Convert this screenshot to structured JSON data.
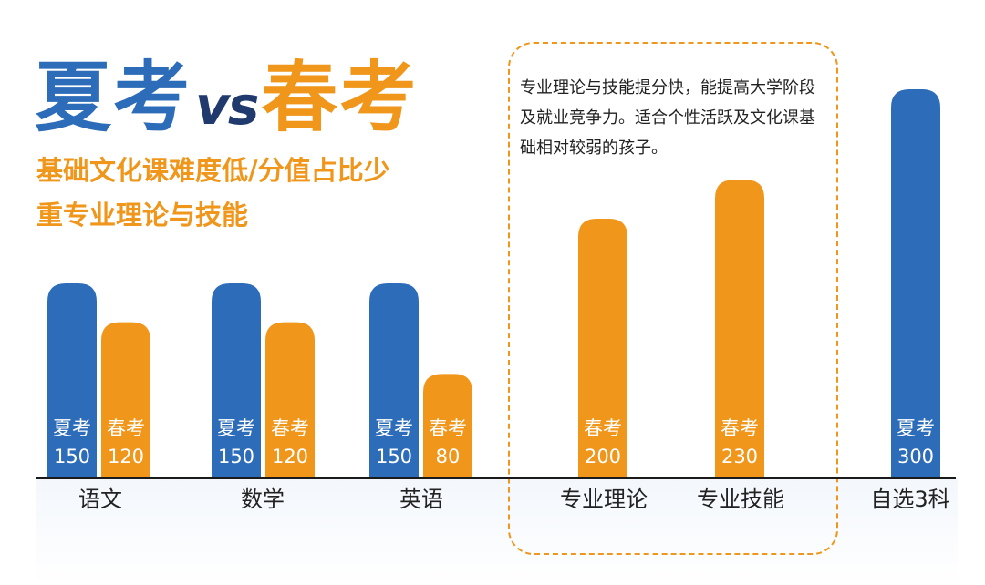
{
  "headline": {
    "word1": "夏考",
    "vs": "vs",
    "word2": "春考"
  },
  "subtitles": [
    "基础文化课难度低/分值占比少",
    "重专业理论与技能"
  ],
  "description": "专业理论与技能提分快，能提高大学阶段及就业竞争力。适合个性活跃及文化课基础相对较弱的孩子。",
  "colors": {
    "summer": "#2c6cb8",
    "spring": "#ef961b",
    "vs": "#203a6e"
  },
  "chart_data": {
    "type": "bar",
    "categories": [
      "语文",
      "数学",
      "英语",
      "专业理论",
      "专业技能",
      "自选3科"
    ],
    "series": [
      {
        "name": "夏考",
        "color": "#2c6cb8",
        "values": [
          150,
          150,
          150,
          null,
          null,
          300
        ]
      },
      {
        "name": "春考",
        "color": "#ef961b",
        "values": [
          120,
          120,
          80,
          200,
          230,
          null
        ]
      }
    ],
    "ylim": [
      0,
      300
    ],
    "title": "",
    "xlabel": "",
    "ylabel": ""
  }
}
